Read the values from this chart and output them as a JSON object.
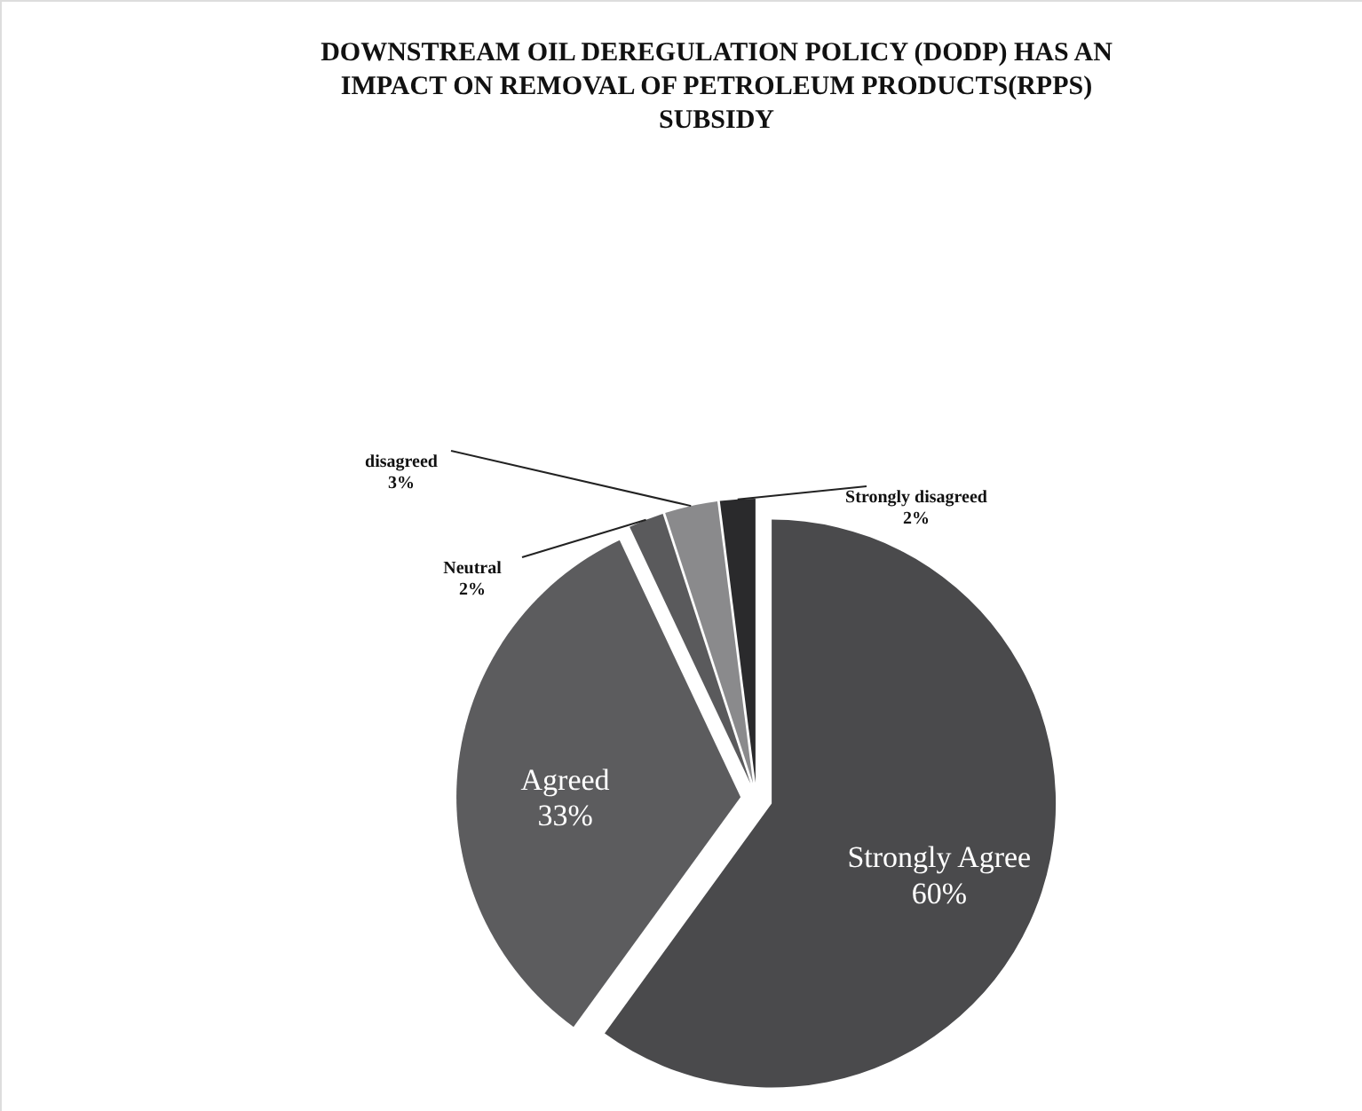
{
  "chart_data": {
    "type": "pie",
    "title": "DOWNSTREAM OIL DEREGULATION POLICY (DODP) HAS AN IMPACT ON REMOVAL OF PETROLEUM PRODUCTS(RPPS) SUBSIDY",
    "categories": [
      "Strongly Agree",
      "Agreed",
      "Neutral",
      "disagreed",
      "Strongly disagreed"
    ],
    "values": [
      60,
      33,
      2,
      3,
      2
    ],
    "value_labels": [
      "60%",
      "33%",
      "2%",
      "3%",
      "2%"
    ],
    "colors": [
      "#4a4a4c",
      "#5c5c5e",
      "#5a5a5c",
      "#8a8a8c",
      "#2a2a2c"
    ]
  }
}
